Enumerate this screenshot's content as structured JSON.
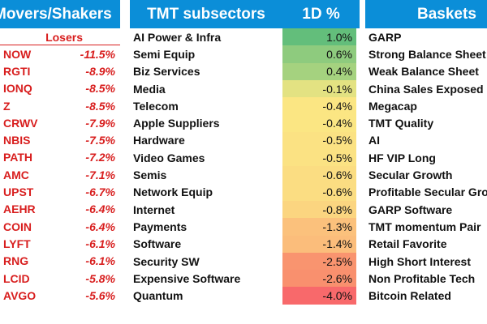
{
  "movers": {
    "title": "Movers/Shakers",
    "subheader": "Losers",
    "rows": [
      {
        "ticker": "NOW",
        "change": "-11.5%"
      },
      {
        "ticker": "RGTI",
        "change": "-8.9%"
      },
      {
        "ticker": "IONQ",
        "change": "-8.5%"
      },
      {
        "ticker": "Z",
        "change": "-8.5%"
      },
      {
        "ticker": "CRWV",
        "change": "-7.9%"
      },
      {
        "ticker": "NBIS",
        "change": "-7.5%"
      },
      {
        "ticker": "PATH",
        "change": "-7.2%"
      },
      {
        "ticker": "AMC",
        "change": "-7.1%"
      },
      {
        "ticker": "UPST",
        "change": "-6.7%"
      },
      {
        "ticker": "AEHR",
        "change": "-6.4%"
      },
      {
        "ticker": "COIN",
        "change": "-6.4%"
      },
      {
        "ticker": "LYFT",
        "change": "-6.1%"
      },
      {
        "ticker": "RNG",
        "change": "-6.1%"
      },
      {
        "ticker": "LCID",
        "change": "-5.8%"
      },
      {
        "ticker": "AVGO",
        "change": "-5.6%"
      }
    ]
  },
  "subsectors": {
    "title": "TMT subsectors",
    "col_label": "1D %",
    "rows": [
      {
        "name": "AI Power & Infra",
        "change": "1.0%",
        "color": "#63be7b"
      },
      {
        "name": "Semi Equip",
        "change": "0.6%",
        "color": "#8ecb7e"
      },
      {
        "name": "Biz Services",
        "change": "0.4%",
        "color": "#a5d27f"
      },
      {
        "name": "Media",
        "change": "-0.1%",
        "color": "#e3e282"
      },
      {
        "name": "Telecom",
        "change": "-0.4%",
        "color": "#fbe683"
      },
      {
        "name": "Apple Suppliers",
        "change": "-0.4%",
        "color": "#fbe683"
      },
      {
        "name": "Hardware",
        "change": "-0.5%",
        "color": "#fbe283"
      },
      {
        "name": "Video Games",
        "change": "-0.5%",
        "color": "#fbe283"
      },
      {
        "name": "Semis",
        "change": "-0.6%",
        "color": "#fbdd82"
      },
      {
        "name": "Network Equip",
        "change": "-0.6%",
        "color": "#fbdd82"
      },
      {
        "name": "Internet",
        "change": "-0.8%",
        "color": "#fbd580"
      },
      {
        "name": "Payments",
        "change": "-1.3%",
        "color": "#fbc17c"
      },
      {
        "name": "Software",
        "change": "-1.4%",
        "color": "#fbbd7b"
      },
      {
        "name": "Security SW",
        "change": "-2.5%",
        "color": "#f9946f"
      },
      {
        "name": "Expensive Software",
        "change": "-2.6%",
        "color": "#f9906e"
      },
      {
        "name": "Quantum",
        "change": "-4.0%",
        "color": "#f8696b"
      }
    ]
  },
  "baskets": {
    "title": "Baskets",
    "rows": [
      "GARP",
      "Strong Balance Sheet",
      "Weak Balance Sheet",
      "China Sales Exposed",
      "Megacap",
      "TMT Quality",
      "AI",
      "HF VIP Long",
      "Secular Growth",
      "Profitable Secular Grow",
      "GARP Software",
      "TMT momentum Pair",
      "Retail Favorite",
      "High Short Interest",
      "Non Profitable Tech",
      "Bitcoin Related"
    ]
  }
}
